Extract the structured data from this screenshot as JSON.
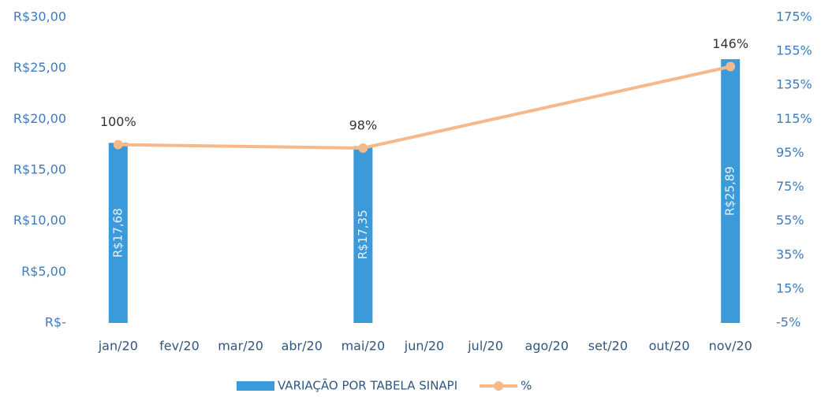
{
  "chart_data": {
    "type": "bar",
    "categories": [
      "jan/20",
      "fev/20",
      "mar/20",
      "abr/20",
      "mai/20",
      "jun/20",
      "jul/20",
      "ago/20",
      "set/20",
      "out/20",
      "nov/20"
    ],
    "series": [
      {
        "name": "VARIAÇÃO POR TABELA SINAPI",
        "type": "bar",
        "color": "#3b9ad9",
        "values": [
          17.68,
          null,
          null,
          null,
          17.35,
          null,
          null,
          null,
          null,
          null,
          25.89
        ],
        "value_labels": [
          "R$17,68",
          null,
          null,
          null,
          "R$17,35",
          null,
          null,
          null,
          null,
          null,
          "R$25,89"
        ]
      },
      {
        "name": "%",
        "type": "line",
        "axis": "y2",
        "color": "#f5b98a",
        "connect_gaps": true,
        "values": [
          100,
          null,
          null,
          null,
          98,
          null,
          null,
          null,
          null,
          null,
          146
        ],
        "value_labels": [
          "100%",
          null,
          null,
          null,
          "98%",
          null,
          null,
          null,
          null,
          null,
          "146%"
        ]
      }
    ],
    "ylim": [
      0,
      30
    ],
    "yticks": [
      {
        "value": 0,
        "label": "R$-"
      },
      {
        "value": 5,
        "label": "R$5,00"
      },
      {
        "value": 10,
        "label": "R$10,00"
      },
      {
        "value": 15,
        "label": "R$15,00"
      },
      {
        "value": 20,
        "label": "R$20,00"
      },
      {
        "value": 25,
        "label": "R$25,00"
      },
      {
        "value": 30,
        "label": "R$30,00"
      }
    ],
    "y2lim": [
      -5,
      175
    ],
    "y2ticks": [
      {
        "value": -5,
        "label": "-5%"
      },
      {
        "value": 15,
        "label": "15%"
      },
      {
        "value": 35,
        "label": "35%"
      },
      {
        "value": 55,
        "label": "55%"
      },
      {
        "value": 75,
        "label": "75%"
      },
      {
        "value": 95,
        "label": "95%"
      },
      {
        "value": 115,
        "label": "115%"
      },
      {
        "value": 135,
        "label": "135%"
      },
      {
        "value": 155,
        "label": "155%"
      },
      {
        "value": 175,
        "label": "175%"
      }
    ],
    "legend": "bottom"
  }
}
